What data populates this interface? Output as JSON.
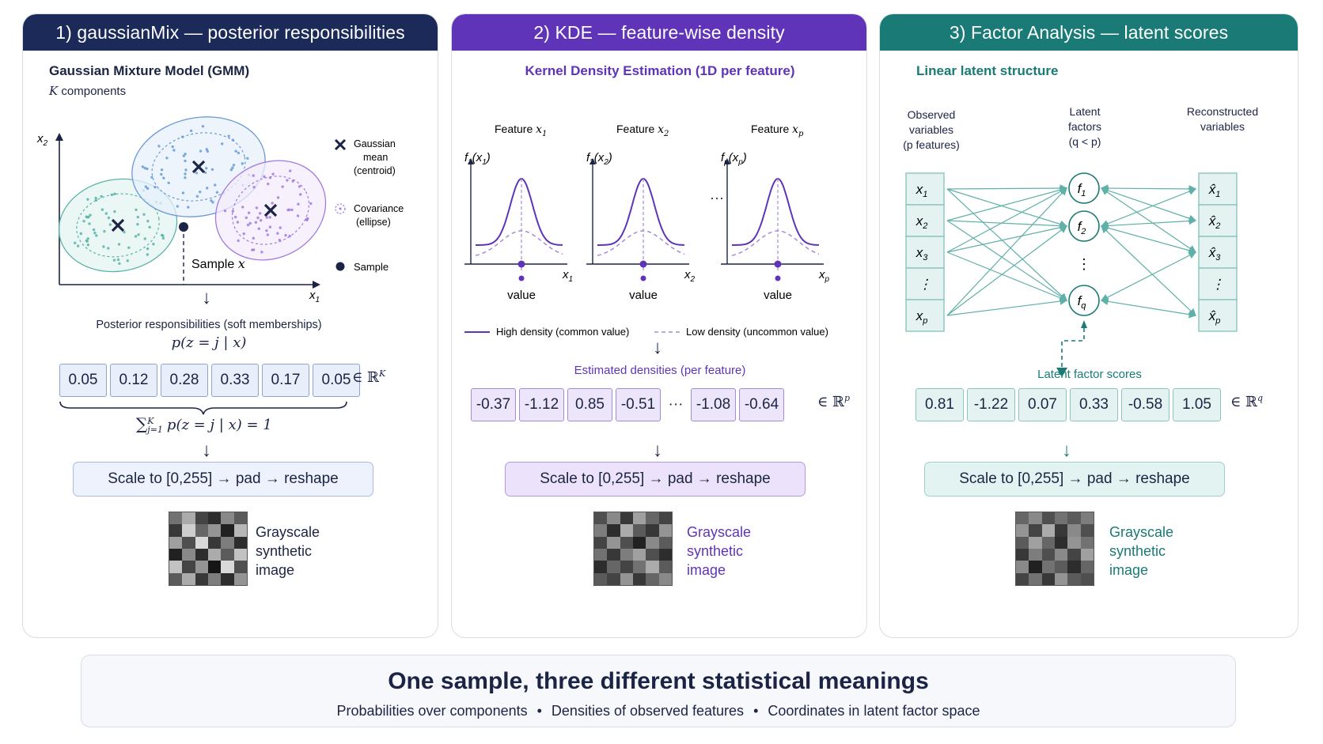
{
  "panel1": {
    "title": "1) gaussianMix — posterior responsibilities",
    "subtitle": "Gaussian Mixture Model (GMM)",
    "k_italic": "K",
    "k_text": " components",
    "axis_x": "x",
    "axis_x_sub": "1",
    "axis_y": "x",
    "axis_y_sub": "2",
    "sample_label": "Sample ",
    "sample_var": "x",
    "legend": [
      {
        "icon": "cross-icon",
        "lines": [
          "Gaussian",
          "mean",
          "(centroid)"
        ]
      },
      {
        "icon": "ellipse-icon",
        "lines": [
          "Covariance",
          "(ellipse)"
        ]
      },
      {
        "icon": "dot-icon",
        "lines": [
          "Sample"
        ]
      }
    ],
    "posterior_label": "Posterior responsibilities (soft memberships)",
    "posterior_formula": "p(z = j | x)",
    "values": [
      "0.05",
      "0.12",
      "0.28",
      "0.33",
      "0.17",
      "0.05"
    ],
    "space": "∈ ℝ",
    "space_sup": "K",
    "sum_sigma": "∑",
    "sum_sup": "K",
    "sum_sub": "j=1",
    "sum_rest": "p(z = j | x) = 1",
    "scale_text": "Scale to [0,255]  →  pad  →  reshape",
    "gs_lines": [
      "Grayscale",
      "synthetic",
      "image"
    ],
    "gs_pixels": [
      [
        0.45,
        0.7,
        0.25,
        0.15,
        0.55,
        0.35
      ],
      [
        0.2,
        0.85,
        0.4,
        0.6,
        0.1,
        0.75
      ],
      [
        0.65,
        0.3,
        0.9,
        0.2,
        0.5,
        0.15
      ],
      [
        0.1,
        0.55,
        0.15,
        0.7,
        0.35,
        0.8
      ],
      [
        0.8,
        0.25,
        0.6,
        0.05,
        0.9,
        0.3
      ],
      [
        0.35,
        0.7,
        0.2,
        0.5,
        0.15,
        0.6
      ]
    ]
  },
  "panel2": {
    "title": "2) KDE  —  feature-wise density",
    "subtitle": "Kernel Density Estimation (1D per feature)",
    "features": [
      {
        "label": "Feature ",
        "var": "x",
        "sub": "1",
        "fn": "f",
        "fn_sub": "1",
        "arg": "x",
        "arg_sub": "1",
        "axis": "x",
        "axis_sub": "1",
        "value_label": "value"
      },
      {
        "label": "Feature ",
        "var": "x",
        "sub": "2",
        "fn": "f",
        "fn_sub": "2",
        "arg": "x",
        "arg_sub": "2",
        "axis": "x",
        "axis_sub": "2",
        "value_label": "value"
      },
      {
        "label": "Feature ",
        "var": "x",
        "sub": "p",
        "fn": "f",
        "fn_sub": "p",
        "arg": "x",
        "arg_sub": "p",
        "axis": "x",
        "axis_sub": "p",
        "value_label": "value"
      }
    ],
    "ellipsis": "···",
    "legend_high": "High density (common value)",
    "legend_low": "Low density (uncommon value)",
    "estimated_label": "Estimated densities (per feature)",
    "values": [
      "-0.37",
      "-1.12",
      "0.85",
      "-0.51",
      "···",
      "-1.08",
      "-0.64"
    ],
    "space": "∈ ℝ",
    "space_sup": "p",
    "scale_text": "Scale to [0,255]  →  pad  →  reshape",
    "gs_lines": [
      "Grayscale",
      "synthetic",
      "image"
    ],
    "gs_pixels": [
      [
        0.3,
        0.55,
        0.2,
        0.65,
        0.4,
        0.25
      ],
      [
        0.5,
        0.15,
        0.7,
        0.35,
        0.2,
        0.6
      ],
      [
        0.25,
        0.6,
        0.3,
        0.1,
        0.55,
        0.35
      ],
      [
        0.45,
        0.2,
        0.5,
        0.65,
        0.3,
        0.15
      ],
      [
        0.15,
        0.4,
        0.25,
        0.45,
        0.7,
        0.35
      ],
      [
        0.35,
        0.25,
        0.6,
        0.2,
        0.4,
        0.55
      ]
    ]
  },
  "panel3": {
    "title": "3) Factor Analysis — latent scores",
    "subtitle": "Linear latent structure",
    "observed_header": [
      "Observed",
      "variables",
      "(p features)"
    ],
    "latent_header": [
      "Latent",
      "factors",
      "(q < p)"
    ],
    "recon_header": [
      "Reconstructed",
      "variables"
    ],
    "observed": [
      {
        "v": "x",
        "s": "1"
      },
      {
        "v": "x",
        "s": "2"
      },
      {
        "v": "x",
        "s": "3"
      },
      {
        "v": "⋮",
        "s": ""
      },
      {
        "v": "x",
        "s": "p"
      }
    ],
    "factors": [
      {
        "v": "f",
        "s": "1"
      },
      {
        "v": "f",
        "s": "2"
      },
      {
        "v": "f",
        "s": "q"
      }
    ],
    "factor_dots": "⋮",
    "reconstructed": [
      {
        "v": "x̂",
        "s": "1"
      },
      {
        "v": "x̂",
        "s": "2"
      },
      {
        "v": "x̂",
        "s": "3"
      },
      {
        "v": "⋮",
        "s": ""
      },
      {
        "v": "x̂",
        "s": "p"
      }
    ],
    "scores_label": "Latent factor scores",
    "values": [
      "0.81",
      "-1.22",
      "0.07",
      "0.33",
      "-0.58",
      "1.05"
    ],
    "space": "∈ ℝ",
    "space_sup": "q",
    "scale_text": "Scale to [0,255]  →  pad  →  reshape",
    "gs_lines": [
      "Grayscale",
      "synthetic",
      "image"
    ],
    "gs_pixels": [
      [
        0.4,
        0.55,
        0.3,
        0.45,
        0.35,
        0.5
      ],
      [
        0.6,
        0.25,
        0.7,
        0.2,
        0.55,
        0.3
      ],
      [
        0.35,
        0.65,
        0.4,
        0.15,
        0.6,
        0.45
      ],
      [
        0.2,
        0.5,
        0.3,
        0.55,
        0.25,
        0.65
      ],
      [
        0.55,
        0.1,
        0.45,
        0.35,
        0.15,
        0.4
      ],
      [
        0.25,
        0.45,
        0.2,
        0.6,
        0.35,
        0.3
      ]
    ]
  },
  "footer": {
    "title": "One sample, three different statistical meanings",
    "items": [
      "Probabilities over components",
      "Densities of observed features",
      "Coordinates in latent factor space"
    ],
    "separator": "•"
  },
  "colors": {
    "navy": "#1c2a5a",
    "purple": "#5f34b8",
    "teal": "#1a7a75",
    "gmm_teal": "#5bb3a8",
    "gmm_blue": "#6a9ad6",
    "gmm_violet": "#a27ae0"
  }
}
